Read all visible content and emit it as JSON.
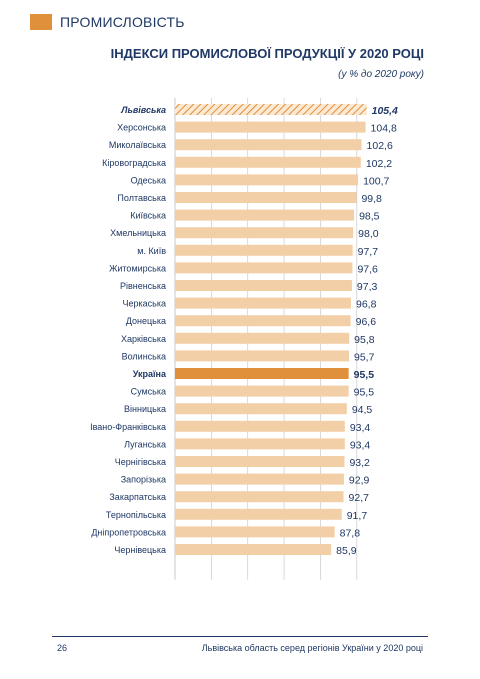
{
  "section": {
    "title": "ПРОМИСЛОВІСТЬ"
  },
  "chart_data": {
    "type": "bar",
    "orientation": "horizontal",
    "title": "ІНДЕКСИ ПРОМИСЛОВОЇ ПРОДУКЦІЇ У 2020 РОЦІ",
    "subtitle": "(у % до 2020 року)",
    "categories": [
      "Львівська",
      "Херсонська",
      "Миколаївська",
      "Кіровоградська",
      "Одеська",
      "Полтавська",
      "Київська",
      "Хмельницька",
      "м. Київ",
      "Житомирська",
      "Рівненська",
      "Черкаська",
      "Донецька",
      "Харківська",
      "Волинська",
      "Україна",
      "Сумська",
      "Вінницька",
      "Івано-Франківська",
      "Луганська",
      "Чернігівська",
      "Запорізька",
      "Закарпатська",
      "Тернопільська",
      "Дніпропетровська",
      "Чернівецька"
    ],
    "values": [
      105.4,
      104.8,
      102.6,
      102.2,
      100.7,
      99.8,
      98.5,
      98.0,
      97.7,
      97.6,
      97.3,
      96.8,
      96.6,
      95.8,
      95.7,
      95.5,
      95.5,
      94.5,
      93.4,
      93.4,
      93.2,
      92.9,
      92.7,
      91.7,
      87.8,
      85.9
    ],
    "value_labels": [
      "105,4",
      "104,8",
      "102,6",
      "102,2",
      "100,7",
      "99,8",
      "98,5",
      "98,0",
      "97,7",
      "97,6",
      "97,3",
      "96,8",
      "96,6",
      "95,8",
      "95,7",
      "95,5",
      "95,5",
      "94,5",
      "93,4",
      "93,4",
      "93,2",
      "92,9",
      "92,7",
      "91,7",
      "87,8",
      "85,9"
    ],
    "highlights": {
      "Львівська": "hatched-bold",
      "Україна": "dark-bold"
    },
    "xlim": [
      0,
      110
    ],
    "grid": true,
    "colors": {
      "bar": "#f2cfa6",
      "ukraine": "#e08f3a",
      "hatch": "#e08f3a",
      "text": "#1f3864",
      "grid": "#c9c9c9"
    }
  },
  "footer": {
    "page": "26",
    "text": "Львівська область серед регіонів України у 2020 році"
  }
}
